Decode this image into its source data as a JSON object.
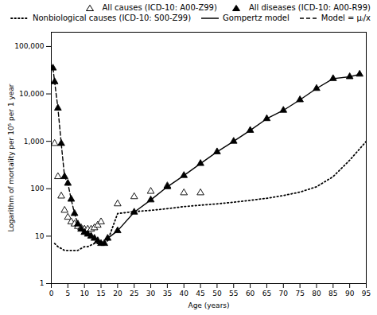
{
  "chart_data": {
    "type": "line",
    "xlabel": "Age (years)",
    "ylabel": "Logarithm of mortality per 10⁵ per 1 year",
    "xlim": [
      0,
      95
    ],
    "ylim": [
      1,
      200000
    ],
    "xticks": [
      0,
      5,
      10,
      15,
      20,
      25,
      30,
      35,
      40,
      45,
      50,
      55,
      60,
      65,
      70,
      75,
      80,
      85,
      90,
      95
    ],
    "yticks": [
      1,
      10,
      100,
      {
        "value": 1000,
        "label": "1,000"
      },
      {
        "value": 10000,
        "label": "10,000"
      },
      {
        "value": 100000,
        "label": "100,000"
      }
    ],
    "log": "y",
    "grid": false,
    "legend": "upper right",
    "series": [
      {
        "name": "All causes (ICD-10: A00-Z99)",
        "type": "scatter",
        "marker": "open triangle",
        "color": "black",
        "x": [
          1,
          2,
          3,
          4,
          5,
          6,
          7,
          8,
          9,
          10,
          11,
          12,
          13,
          14,
          15,
          20,
          25,
          30,
          35,
          40,
          45
        ],
        "values": [
          900,
          180,
          70,
          35,
          25,
          20,
          18,
          16,
          15,
          14,
          14,
          14,
          15,
          17,
          20,
          48,
          68,
          88,
          115,
          82,
          82
        ]
      },
      {
        "name": "All diseases (ICD-10: A00-R99)",
        "type": "scatter",
        "marker": "filled triangle",
        "color": "black",
        "x": [
          0.5,
          1,
          2,
          3,
          4,
          5,
          6,
          7,
          8,
          9,
          10,
          11,
          12,
          13,
          14,
          15,
          16,
          17,
          20,
          25,
          30,
          35,
          40,
          45,
          50,
          55,
          60,
          65,
          70,
          75,
          80,
          85,
          90,
          93
        ],
        "values": [
          35000,
          18000,
          5000,
          900,
          180,
          130,
          60,
          30,
          18,
          14,
          12,
          11,
          10,
          9,
          8,
          7,
          7,
          9,
          13,
          32,
          58,
          110,
          190,
          340,
          600,
          1000,
          1700,
          3000,
          4500,
          7500,
          13000,
          21000,
          23000,
          26000
        ]
      },
      {
        "name": "Nonbiological causes (ICD-10: S00-Z99)",
        "type": "line",
        "line_style": "dotted",
        "color": "black",
        "x": [
          1,
          2,
          3,
          4,
          5,
          6,
          7,
          8,
          9,
          10,
          11,
          12,
          13,
          14,
          15,
          17,
          20,
          25,
          30,
          35,
          40,
          45,
          50,
          55,
          60,
          65,
          70,
          75,
          80,
          85,
          90,
          95
        ],
        "values": [
          7,
          6,
          5.5,
          5,
          5,
          5,
          5,
          5,
          5.5,
          6,
          6,
          6.5,
          7,
          7,
          7,
          8,
          30,
          33,
          35,
          38,
          42,
          45,
          48,
          52,
          57,
          63,
          72,
          85,
          110,
          180,
          400,
          1000
        ]
      },
      {
        "name": "Gompertz model",
        "type": "line",
        "line_style": "solid",
        "color": "black",
        "x": [
          17,
          20,
          25,
          30,
          35,
          40,
          45,
          50,
          55,
          60,
          65,
          70,
          75,
          80,
          85,
          90,
          93
        ],
        "values": [
          9,
          13,
          32,
          58,
          110,
          190,
          340,
          600,
          1000,
          1700,
          3000,
          4500,
          7500,
          13000,
          21000,
          23000,
          26000
        ]
      },
      {
        "name": "Model = μᵢ/x",
        "type": "line",
        "line_style": "dashed",
        "color": "black",
        "x": [
          0.5,
          1,
          2,
          3,
          4,
          5,
          6,
          7,
          8,
          9,
          10,
          11,
          12,
          13,
          14,
          15,
          16,
          17
        ],
        "values": [
          35000,
          18000,
          5000,
          900,
          180,
          130,
          60,
          30,
          18,
          14,
          12,
          11,
          10,
          9,
          8,
          7,
          7,
          9
        ]
      }
    ]
  }
}
